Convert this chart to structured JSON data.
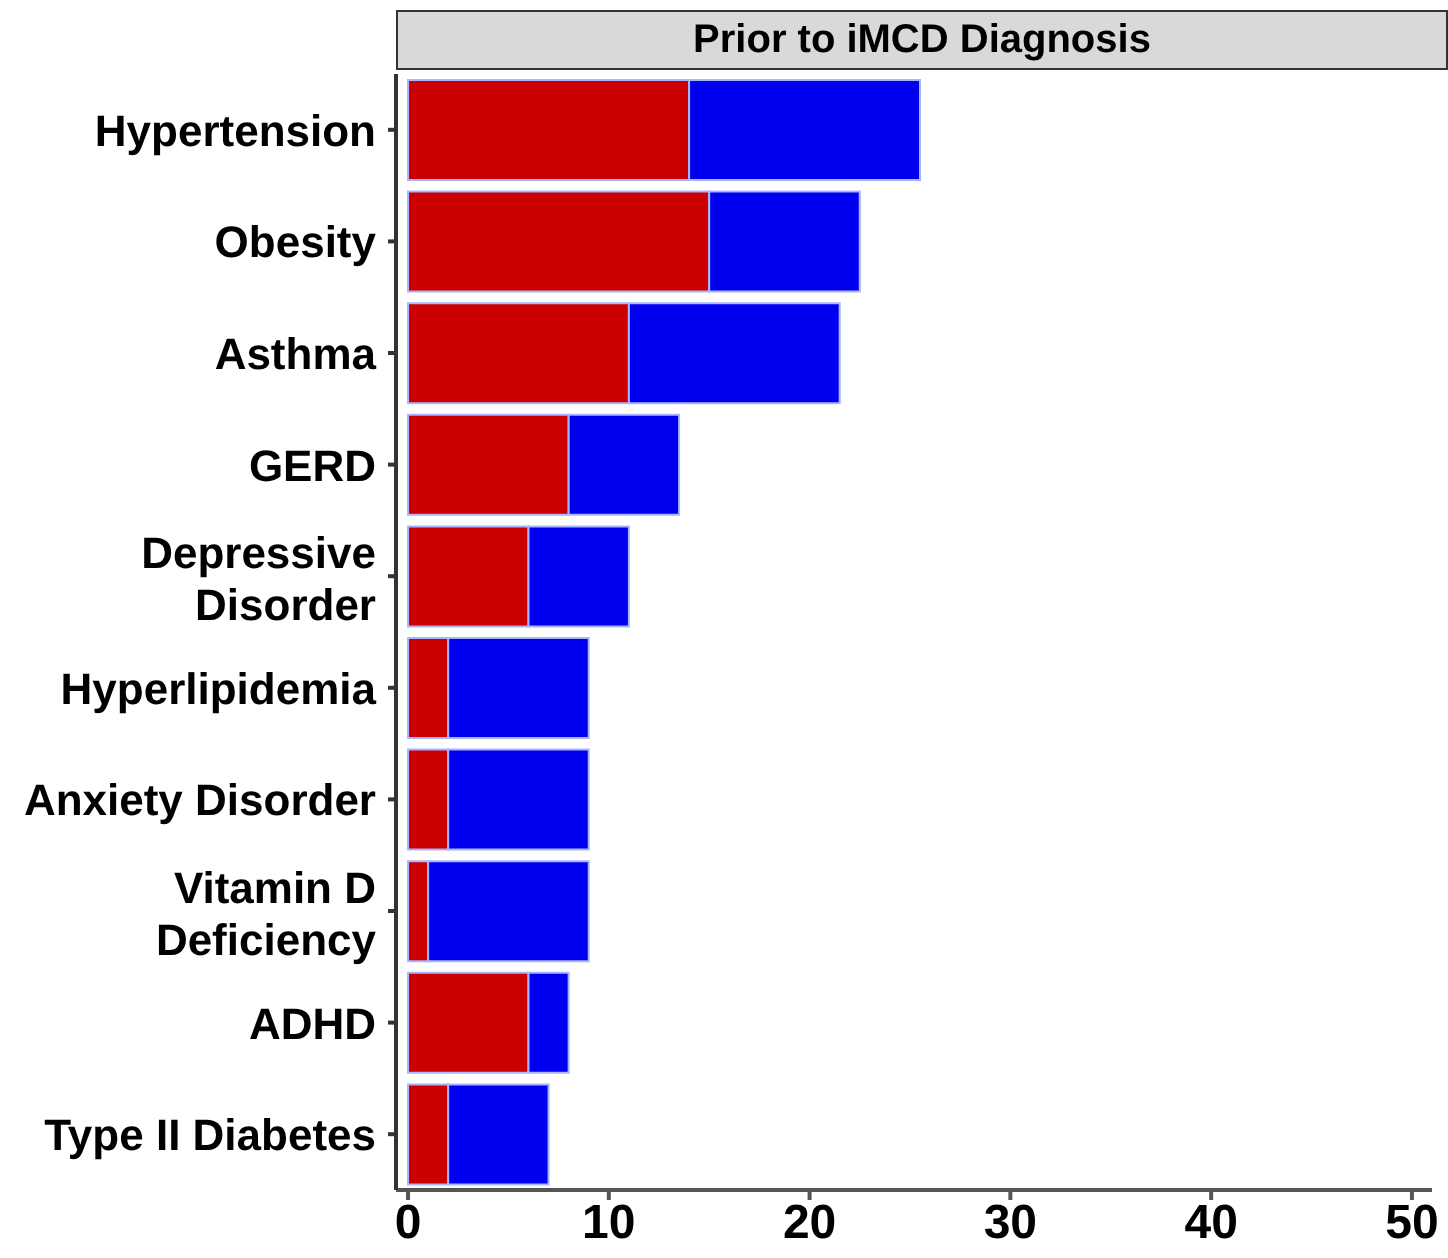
{
  "chart_data": {
    "type": "bar",
    "orientation": "horizontal",
    "stacked": true,
    "title": "Prior to iMCD Diagnosis",
    "categories": [
      "Hypertension",
      "Obesity",
      "Asthma",
      "GERD",
      "Depressive Disorder",
      "Hyperlipidemia",
      "Anxiety Disorder",
      "Vitamin D Deficiency",
      "ADHD",
      "Type II Diabetes"
    ],
    "series": [
      {
        "color": "#cc0000",
        "values": [
          14,
          15,
          11,
          8,
          6,
          2,
          2,
          1,
          6,
          2
        ]
      },
      {
        "color": "#0000ee",
        "values": [
          11.5,
          7.5,
          10.5,
          5.5,
          5,
          7,
          7,
          8,
          2,
          5
        ]
      }
    ],
    "xlim": [
      -0.6,
      51
    ],
    "xticks": [
      0,
      10,
      20,
      30,
      40,
      50
    ],
    "grid": false,
    "legend": false
  }
}
